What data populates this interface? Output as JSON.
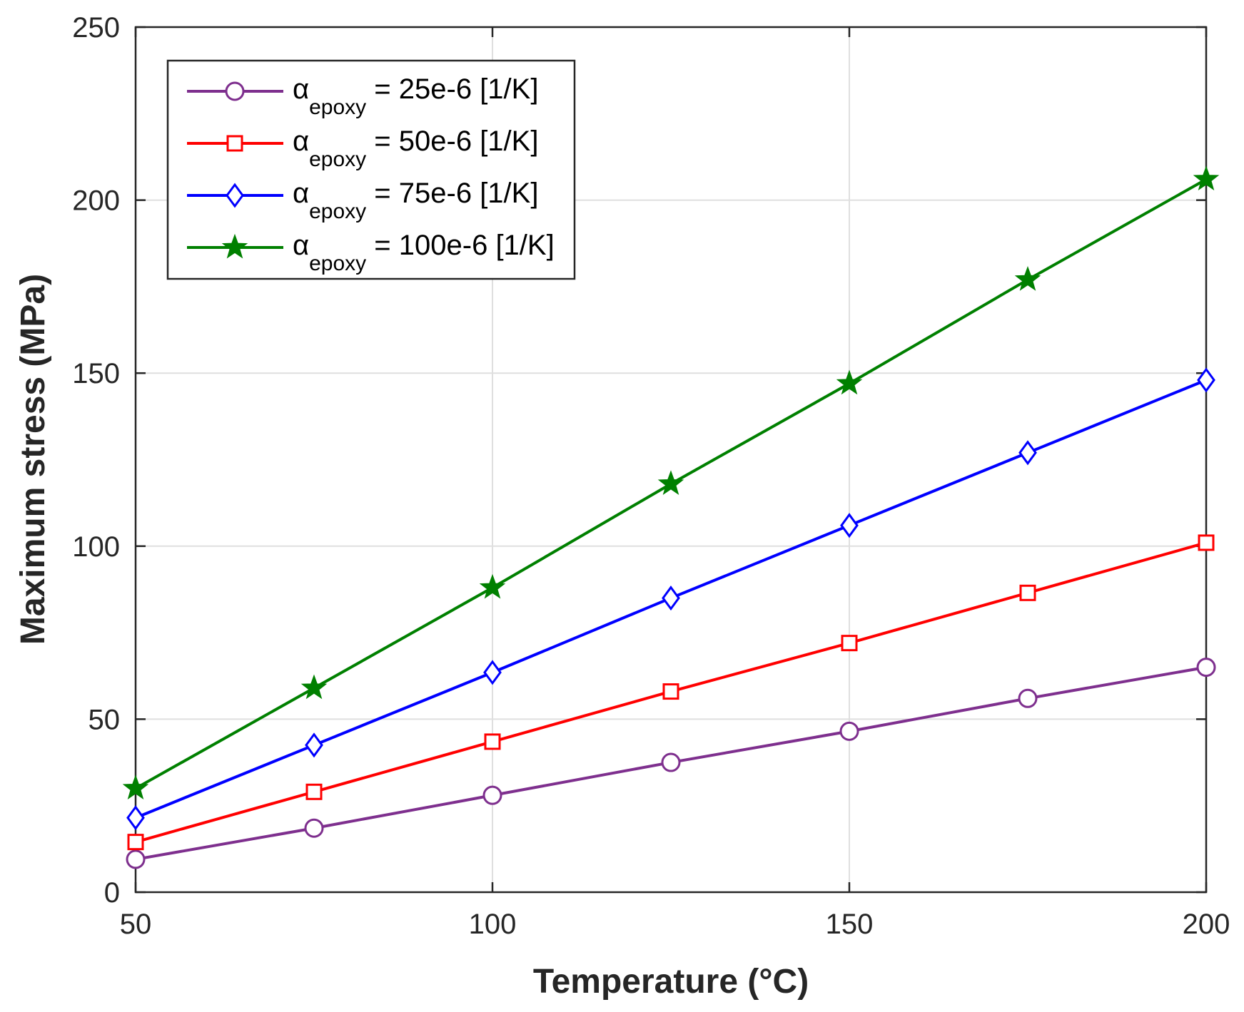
{
  "chart_data": {
    "type": "line",
    "title": "",
    "xlabel": "Temperature (°C)",
    "ylabel": "Maximum stress (MPa)",
    "xlim": [
      50,
      200
    ],
    "ylim": [
      0,
      250
    ],
    "xticks": [
      50,
      100,
      150,
      200
    ],
    "yticks": [
      0,
      50,
      100,
      150,
      200,
      250
    ],
    "grid": true,
    "legend_position": "top-left",
    "x": [
      50,
      75,
      100,
      125,
      150,
      175,
      200
    ],
    "series": [
      {
        "name": "αepoxy = 25e-6 [1/K]",
        "symbol": "α",
        "subscript": "epoxy",
        "value_text": " = 25e-6 [1/K]",
        "color": "#7E2F8E",
        "marker": "circle",
        "values": [
          9.5,
          18.5,
          28,
          37.5,
          46.5,
          56,
          65
        ]
      },
      {
        "name": "αepoxy = 50e-6 [1/K]",
        "symbol": "α",
        "subscript": "epoxy",
        "value_text": " = 50e-6 [1/K]",
        "color": "#FF0000",
        "marker": "square",
        "values": [
          14.5,
          29,
          43.5,
          58,
          72,
          86.5,
          101
        ]
      },
      {
        "name": "αepoxy = 75e-6 [1/K]",
        "symbol": "α",
        "subscript": "epoxy",
        "value_text": " = 75e-6 [1/K]",
        "color": "#0000FF",
        "marker": "diamond",
        "values": [
          21.5,
          42.5,
          63.5,
          85,
          106,
          127,
          148
        ]
      },
      {
        "name": "αepoxy = 100e-6 [1/K]",
        "symbol": "α",
        "subscript": "epoxy",
        "value_text": " = 100e-6 [1/K]",
        "color": "#008000",
        "marker": "star",
        "values": [
          30,
          59,
          88,
          118,
          147,
          177,
          206
        ]
      }
    ]
  }
}
